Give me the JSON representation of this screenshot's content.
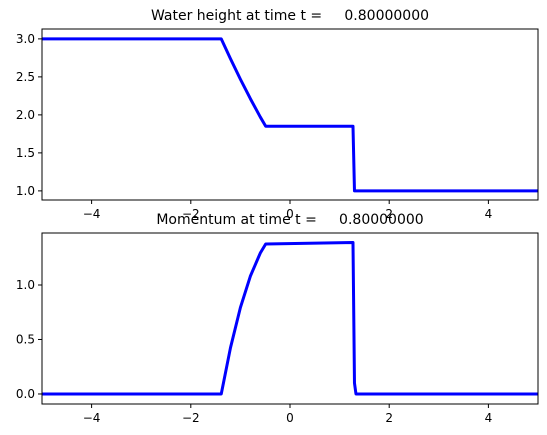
{
  "chart_data": [
    {
      "type": "line",
      "title": "Water height at time t =     0.80000000",
      "x": [
        -5,
        -1.5,
        -1.386,
        -1.2,
        -1.0,
        -0.8,
        -0.6,
        -0.49,
        1.27,
        1.3,
        1.33,
        5
      ],
      "series": [
        {
          "values": [
            3.0,
            3.0,
            3.0,
            2.738,
            2.469,
            2.214,
            1.973,
            1.85,
            1.85,
            1.0,
            1.0,
            1.0
          ],
          "color": "#0000ff"
        }
      ],
      "xlim": [
        -5,
        5
      ],
      "xticks": [
        {
          "value": -4,
          "label": "−4"
        },
        {
          "value": -2,
          "label": "−2"
        },
        0,
        2,
        4
      ],
      "ylim": [
        0.88,
        3.13
      ],
      "yticks": [
        {
          "value": 1.0,
          "label": "1.0"
        },
        {
          "value": 1.5,
          "label": "1.5"
        },
        {
          "value": 2.0,
          "label": "2.0"
        },
        {
          "value": 2.5,
          "label": "2.5"
        },
        {
          "value": 3.0,
          "label": "3.0"
        }
      ]
    },
    {
      "type": "line",
      "title": "Momentum at time t =     0.80000000",
      "x": [
        -5,
        -1.5,
        -1.386,
        -1.2,
        -1.0,
        -0.8,
        -0.6,
        -0.49,
        1.27,
        1.3,
        1.33,
        5
      ],
      "series": [
        {
          "values": [
            0.0,
            0.0,
            0.0,
            0.424,
            0.793,
            1.08,
            1.292,
            1.376,
            1.39,
            0.1,
            0.0,
            0.0
          ],
          "color": "#0000ff"
        }
      ],
      "xlim": [
        -5,
        5
      ],
      "xticks": [
        {
          "value": -4,
          "label": "−4"
        },
        {
          "value": -2,
          "label": "−2"
        },
        0,
        2,
        4
      ],
      "ylim": [
        -0.092,
        1.477
      ],
      "yticks": [
        {
          "value": 0.0,
          "label": "0.0"
        },
        {
          "value": 0.5,
          "label": "0.5"
        },
        {
          "value": 1.0,
          "label": "1.0"
        }
      ]
    }
  ]
}
